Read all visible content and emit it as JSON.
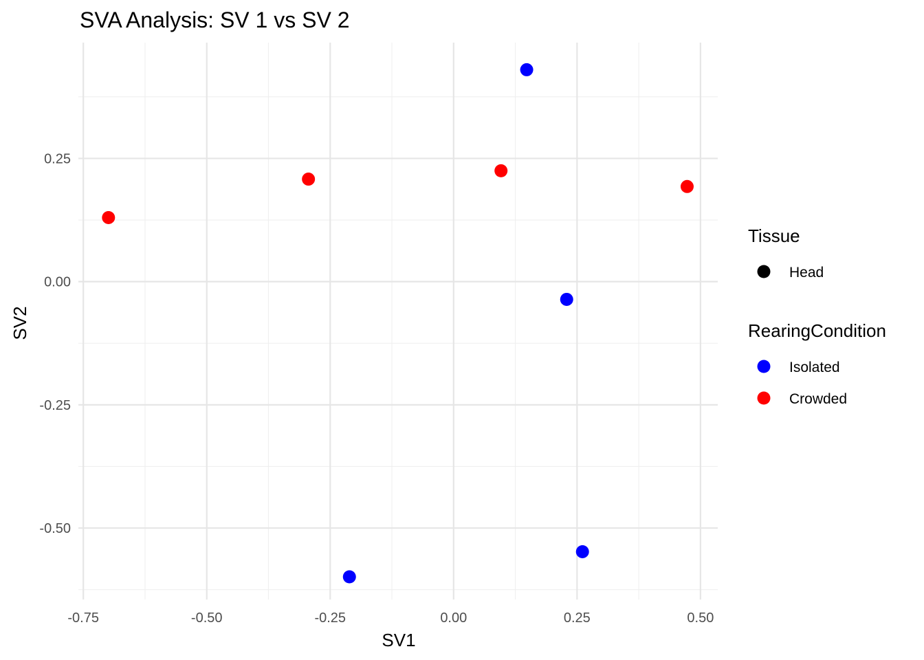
{
  "chart_data": {
    "type": "scatter",
    "title": "SVA Analysis: SV 1  vs SV 2",
    "xlabel": "SV1",
    "ylabel": "SV2",
    "xlim": [
      -0.76,
      0.535
    ],
    "ylim": [
      -0.645,
      0.485
    ],
    "x_ticks": [
      -0.75,
      -0.5,
      -0.25,
      0.0,
      0.25,
      0.5
    ],
    "x_tick_labels": [
      "-0.75",
      "-0.50",
      "-0.25",
      "0.00",
      "0.25",
      "0.50"
    ],
    "y_ticks": [
      -0.5,
      -0.25,
      0.0,
      0.25
    ],
    "y_tick_labels": [
      "-0.50",
      "-0.25",
      "0.00",
      "0.25"
    ],
    "x_minor_ticks": [
      -0.625,
      -0.375,
      -0.125,
      0.125,
      0.375
    ],
    "y_minor_ticks": [
      -0.625,
      -0.375,
      -0.125,
      0.125,
      0.375
    ],
    "grid": true,
    "legend_position": "right",
    "legends": [
      {
        "title": "Tissue",
        "entries": [
          {
            "label": "Head",
            "color": "#000000"
          }
        ]
      },
      {
        "title": "RearingCondition",
        "entries": [
          {
            "label": "Isolated",
            "color": "#0000ff"
          },
          {
            "label": "Crowded",
            "color": "#ff0000"
          }
        ]
      }
    ],
    "series": [
      {
        "name": "Isolated",
        "color": "#0000ff",
        "points": [
          {
            "x": 0.148,
            "y": 0.43
          },
          {
            "x": 0.229,
            "y": -0.036
          },
          {
            "x": 0.261,
            "y": -0.548
          },
          {
            "x": -0.211,
            "y": -0.599
          }
        ]
      },
      {
        "name": "Crowded",
        "color": "#ff0000",
        "points": [
          {
            "x": -0.699,
            "y": 0.13
          },
          {
            "x": -0.294,
            "y": 0.208
          },
          {
            "x": 0.096,
            "y": 0.225
          },
          {
            "x": 0.473,
            "y": 0.193
          }
        ]
      }
    ]
  }
}
